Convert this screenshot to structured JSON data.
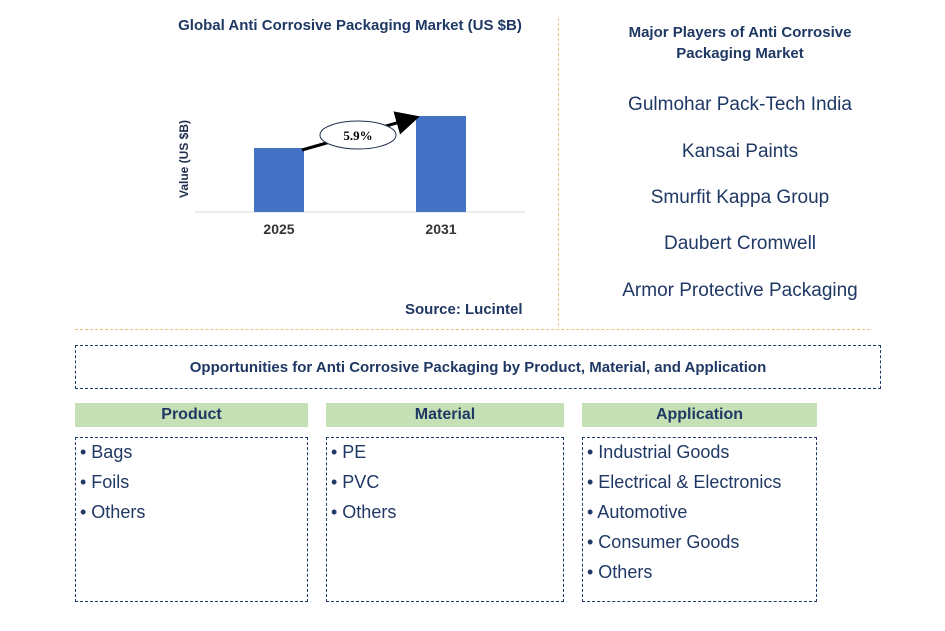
{
  "chart_data": {
    "type": "bar",
    "title": "Global Anti Corrosive Packaging Market (US $B)",
    "categories": [
      "2025",
      "2031"
    ],
    "values": [
      1.0,
      1.5
    ],
    "ylabel": "Value (US $B)",
    "xlabel": "",
    "annotation": "5.9%",
    "bar_color": "#4472c4",
    "source": "Source: Lucintel"
  },
  "players": {
    "title": "Major Players of Anti Corrosive Packaging Market",
    "items": [
      "Gulmohar Pack-Tech India",
      "Kansai Paints",
      "Smurfit Kappa Group",
      "Daubert Cromwell",
      "Armor Protective Packaging"
    ]
  },
  "opportunities": {
    "title": "Opportunities for Anti Corrosive Packaging by Product, Material, and Application",
    "header_color": "#c5e0b4",
    "categories": [
      {
        "name": "Product",
        "items": [
          "Bags",
          "Foils",
          "Others"
        ]
      },
      {
        "name": "Material",
        "items": [
          "PE",
          "PVC",
          "Others"
        ]
      },
      {
        "name": "Application",
        "items": [
          "Industrial Goods",
          "Electrical & Electronics",
          "Automotive",
          "Consumer Goods",
          "Others"
        ]
      }
    ]
  }
}
